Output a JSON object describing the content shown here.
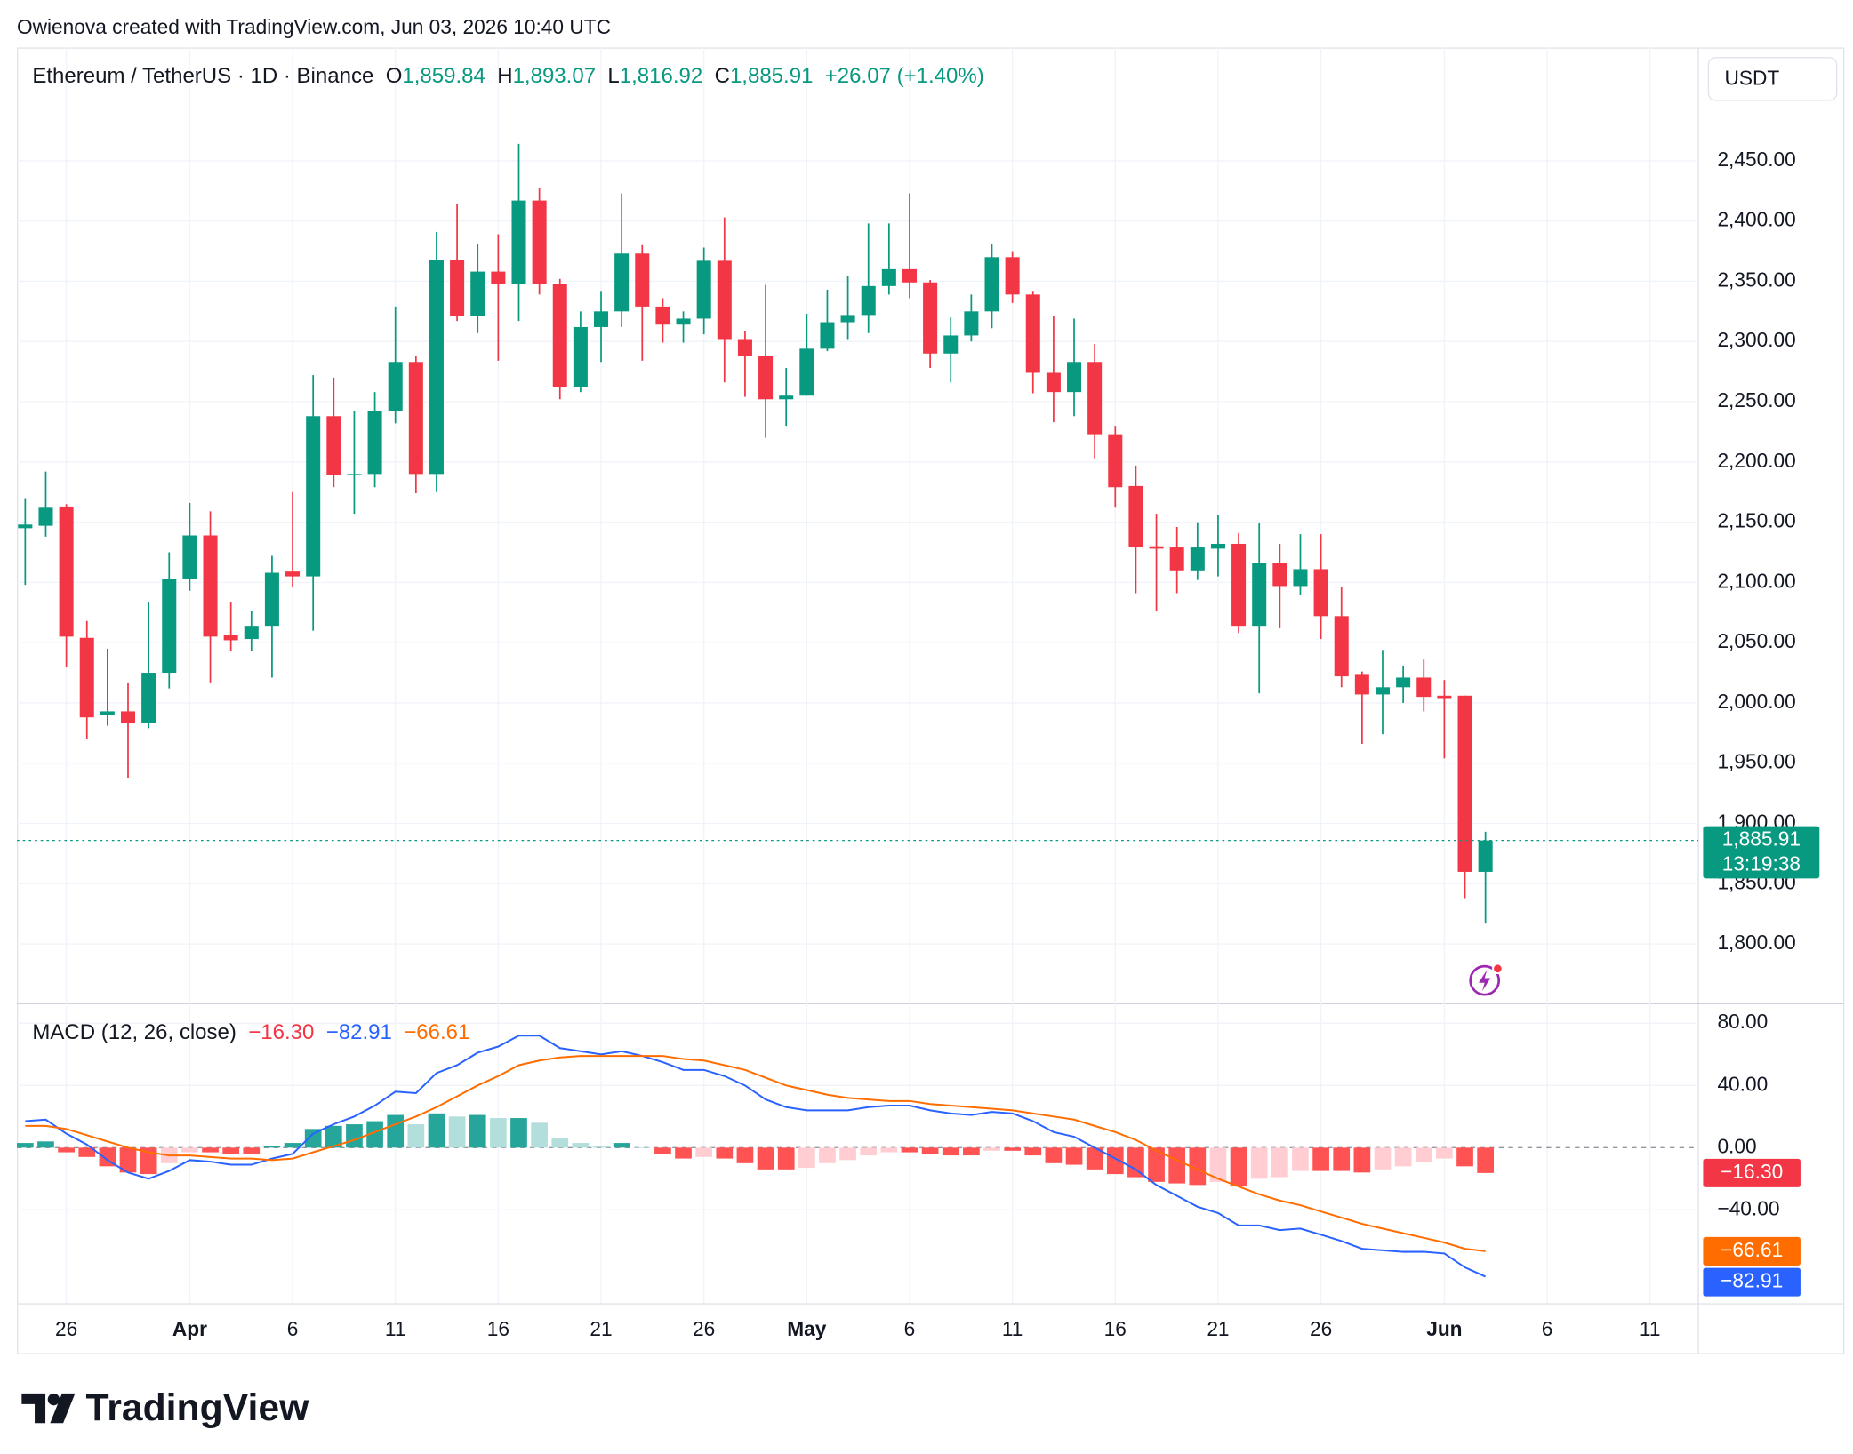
{
  "header": {
    "attribution": "Owienova created with TradingView.com, Jun 03, 2026 10:40 UTC",
    "brand": "TradingView"
  },
  "chart_data": [
    {
      "type": "candlestick",
      "title": "Ethereum / TetherUS · 1D · Binance",
      "ohlc_legend": [
        {
          "key": "O",
          "text": "1,859.84"
        },
        {
          "key": "H",
          "text": "1,893.07"
        },
        {
          "key": "L",
          "text": "1,816.92"
        },
        {
          "key": "C",
          "text": "1,885.91"
        }
      ],
      "change_label": "+26.07 (+1.40%)",
      "currency": "USDT",
      "last_price_label": "1,885.91",
      "countdown": "13:19:38",
      "up_color": "#089981",
      "down_color": "#f23645",
      "grid": true,
      "categories": [
        null,
        null,
        "26",
        null,
        null,
        null,
        null,
        null,
        "Apr",
        null,
        null,
        null,
        null,
        "6",
        null,
        null,
        null,
        null,
        "11",
        null,
        null,
        null,
        null,
        "16",
        null,
        null,
        null,
        null,
        "21",
        null,
        null,
        null,
        null,
        "26",
        null,
        null,
        null,
        null,
        "May",
        null,
        null,
        null,
        null,
        "6",
        null,
        null,
        null,
        null,
        "11",
        null,
        null,
        null,
        null,
        "16",
        null,
        null,
        null,
        null,
        "21",
        null,
        null,
        null,
        null,
        "26",
        null,
        null,
        null,
        null,
        null,
        "Jun",
        null,
        null,
        null,
        null,
        "6",
        null,
        null,
        null,
        null,
        "11",
        null,
        null
      ],
      "open": [
        2145,
        2147,
        2163,
        2054,
        1990,
        1993,
        1983,
        2025,
        2103,
        2139,
        2056,
        2053,
        2064,
        2109,
        2105,
        2238,
        2189,
        2190,
        2242,
        2283,
        2190,
        2368,
        2321,
        2358,
        2348,
        2417,
        2348,
        2262,
        2312,
        2325,
        2373,
        2329,
        2314,
        2319,
        2367,
        2302,
        2288,
        2252,
        2255,
        2294,
        2316,
        2322,
        2346,
        2360,
        2349,
        2290,
        2305,
        2325,
        2370,
        2339,
        2274,
        2258,
        2283,
        2223,
        2180,
        2130,
        2129,
        2110,
        2128,
        2132,
        2064,
        2116,
        2097,
        2111,
        2072,
        2024,
        2007,
        2013,
        2021,
        2006,
        2006,
        1859.84,
        null,
        null,
        null,
        null,
        null,
        null,
        null,
        null,
        null,
        null
      ],
      "high": [
        2170,
        2192,
        2165,
        2068,
        2045,
        2017,
        2084,
        2125,
        2166,
        2159,
        2084,
        2076,
        2122,
        2175,
        2272,
        2270,
        2242,
        2258,
        2329,
        2288,
        2391,
        2414,
        2381,
        2389,
        2464,
        2427,
        2352,
        2325,
        2342,
        2423,
        2380,
        2336,
        2325,
        2378,
        2403,
        2309,
        2347,
        2278,
        2323,
        2343,
        2354,
        2398,
        2398,
        2423,
        2351,
        2320,
        2339,
        2381,
        2375,
        2342,
        2321,
        2319,
        2298,
        2230,
        2197,
        2157,
        2146,
        2150,
        2156,
        2141,
        2149,
        2132,
        2140,
        2140,
        2096,
        2026,
        2044,
        2031,
        2036,
        2019,
        2006,
        1893.07,
        null,
        null,
        null,
        null,
        null,
        null,
        null,
        null,
        null,
        null
      ],
      "low": [
        2098,
        2138,
        2030,
        1970,
        1981,
        1938,
        1979,
        2012,
        2093,
        2017,
        2043,
        2043,
        2021,
        2096,
        2060,
        2179,
        2157,
        2179,
        2232,
        2174,
        2175,
        2317,
        2307,
        2284,
        2317,
        2339,
        2252,
        2258,
        2283,
        2312,
        2284,
        2299,
        2299,
        2306,
        2266,
        2254,
        2220,
        2230,
        2255,
        2292,
        2302,
        2307,
        2339,
        2336,
        2278,
        2266,
        2300,
        2311,
        2332,
        2257,
        2233,
        2238,
        2203,
        2162,
        2091,
        2076,
        2091,
        2102,
        2105,
        2058,
        2008,
        2062,
        2090,
        2053,
        2013,
        1966,
        1974,
        2000,
        1993,
        1954,
        1838,
        1816.92,
        null,
        null,
        null,
        null,
        null,
        null,
        null,
        null,
        null,
        null
      ],
      "close": [
        2148,
        2162,
        2055,
        1988,
        1993,
        1983,
        2025,
        2103,
        2139,
        2055,
        2052,
        2064,
        2108,
        2105,
        2238,
        2189,
        2190,
        2242,
        2283,
        2190,
        2368,
        2321,
        2358,
        2348,
        2417,
        2348,
        2262,
        2312,
        2325,
        2373,
        2329,
        2314,
        2319,
        2367,
        2302,
        2288,
        2252,
        2255,
        2294,
        2316,
        2322,
        2346,
        2360,
        2349,
        2290,
        2305,
        2325,
        2370,
        2339,
        2274,
        2258,
        2283,
        2223,
        2179,
        2129,
        2128,
        2110,
        2129,
        2132,
        2064,
        2116,
        2097,
        2111,
        2072,
        2022,
        2007,
        2013,
        2021,
        2005,
        2004,
        1859.84,
        1885.91,
        null,
        null,
        null,
        null,
        null,
        null,
        null,
        null,
        null,
        null
      ],
      "ylim": [
        1751,
        2544
      ],
      "yticks": [
        {
          "value": 2450,
          "label": "2,450.00"
        },
        {
          "value": 2400,
          "label": "2,400.00"
        },
        {
          "value": 2350,
          "label": "2,350.00"
        },
        {
          "value": 2300,
          "label": "2,300.00"
        },
        {
          "value": 2250,
          "label": "2,250.00"
        },
        {
          "value": 2200,
          "label": "2,200.00"
        },
        {
          "value": 2150,
          "label": "2,150.00"
        },
        {
          "value": 2100,
          "label": "2,100.00"
        },
        {
          "value": 2050,
          "label": "2,050.00"
        },
        {
          "value": 2000,
          "label": "2,000.00"
        },
        {
          "value": 1950,
          "label": "1,950.00"
        },
        {
          "value": 1900,
          "label": "1,900.00"
        },
        {
          "value": 1850,
          "label": "1,850.00"
        },
        {
          "value": 1800,
          "label": "1,800.00"
        }
      ]
    },
    {
      "type": "macd",
      "title": "MACD (12, 26, close)",
      "histogram_colors": {
        "rising_above": "#26a69a",
        "falling_above": "#b2dfdb",
        "falling_below": "#ff5252",
        "rising_below": "#ffcdd2"
      },
      "series": [
        {
          "color": "#f23645",
          "last_label": "−16.30",
          "values": [
            3,
            4,
            -3,
            -6,
            -12,
            -16,
            -17,
            -10,
            -3,
            -3,
            -4,
            -4,
            1,
            3,
            12,
            14,
            15,
            17,
            21,
            15,
            22,
            20,
            21,
            19,
            19,
            16,
            6,
            3,
            1,
            3,
            0,
            -4,
            -7,
            -6,
            -7,
            -10,
            -14,
            -14,
            -13,
            -10,
            -8,
            -5,
            -3,
            -3,
            -4,
            -5,
            -5,
            -2,
            -2,
            -5,
            -10,
            -11,
            -14,
            -17,
            -19,
            -22,
            -23,
            -24,
            -22,
            -25,
            -20,
            -19,
            -15,
            -15,
            -15,
            -16,
            -14,
            -12,
            -9,
            -7,
            -12,
            -16.3,
            null,
            null,
            null,
            null,
            null,
            null,
            null,
            null,
            null,
            null
          ]
        },
        {
          "color": "#2962ff",
          "last_label": "−82.91",
          "values": [
            17,
            18,
            9,
            2,
            -8,
            -16,
            -20,
            -15,
            -8,
            -9,
            -11,
            -11,
            -7,
            -4,
            9,
            15,
            20,
            27,
            36,
            35,
            48,
            53,
            61,
            65,
            72,
            72,
            64,
            62,
            60,
            62,
            59,
            55,
            50,
            50,
            46,
            40,
            31,
            26,
            24,
            24,
            24,
            26,
            27,
            27,
            24,
            22,
            21,
            23,
            22,
            17,
            10,
            7,
            0,
            -7,
            -14,
            -24,
            -31,
            -38,
            -42,
            -50,
            -50,
            -53,
            -52,
            -56,
            -60,
            -65,
            -66,
            -67,
            -67,
            -68,
            -77,
            -82.91,
            null,
            null,
            null,
            null,
            null,
            null,
            null,
            null,
            null,
            null
          ]
        },
        {
          "color": "#ff6d00",
          "last_label": "−66.61",
          "values": [
            14,
            14,
            12,
            8,
            4,
            0,
            -3,
            -5,
            -5,
            -6,
            -7,
            -7,
            -8,
            -7,
            -3,
            1,
            5,
            10,
            15,
            20,
            26,
            33,
            40,
            46,
            53,
            56,
            58,
            59,
            59,
            59,
            59,
            59,
            57,
            56,
            53,
            50,
            45,
            40,
            37,
            34,
            32,
            31,
            30,
            30,
            28,
            27,
            26,
            25,
            24,
            22,
            20,
            18,
            14,
            10,
            5,
            -2,
            -8,
            -14,
            -20,
            -25,
            -30,
            -34,
            -37,
            -41,
            -45,
            -49,
            -52,
            -55,
            -58,
            -61,
            -65,
            -66.61,
            null,
            null,
            null,
            null,
            null,
            null,
            null,
            null,
            null,
            null
          ]
        }
      ],
      "y2lim": [
        -100,
        93
      ],
      "y2ticks": [
        {
          "value": 80,
          "label": "80.00"
        },
        {
          "value": 40,
          "label": "40.00"
        },
        {
          "value": 0,
          "label": "0.00"
        },
        {
          "value": -40,
          "label": "−40.00"
        }
      ]
    }
  ]
}
